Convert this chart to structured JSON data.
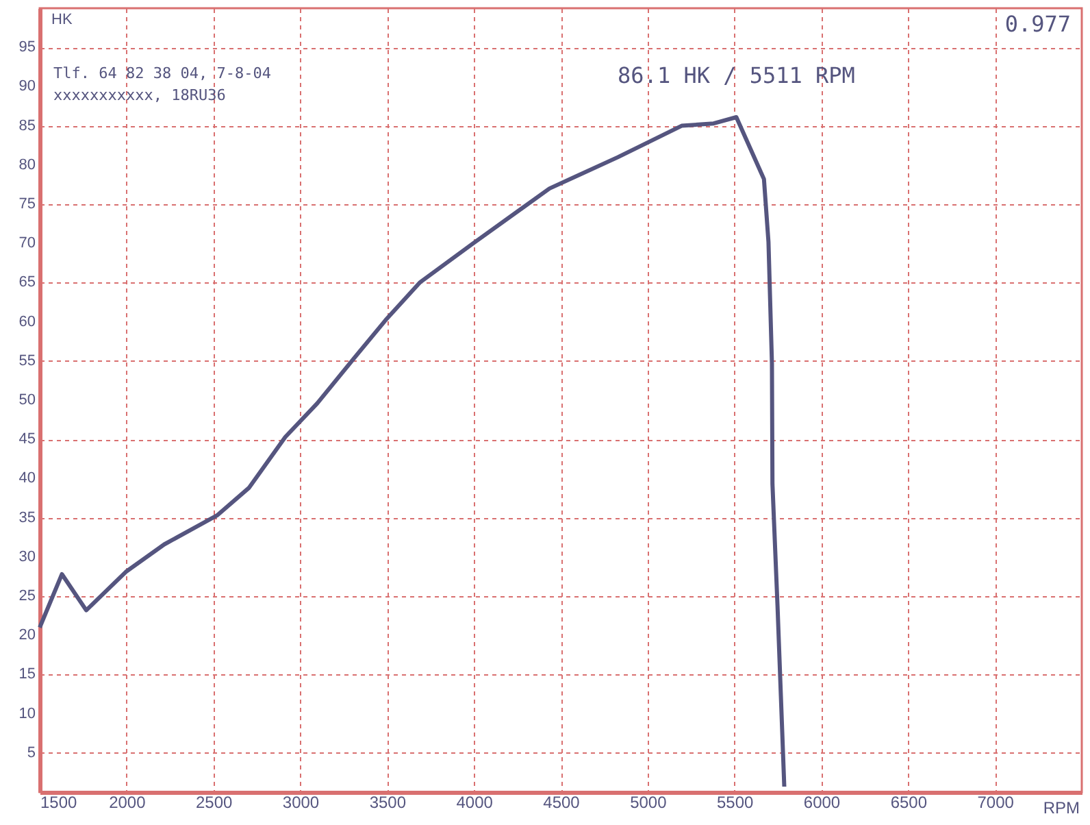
{
  "chart_data": {
    "type": "line",
    "xlabel": "RPM",
    "ylabel": "HK",
    "x": [
      1500,
      1628,
      1768,
      1996,
      2217,
      2521,
      2704,
      2914,
      3098,
      3308,
      3491,
      3688,
      3989,
      4435,
      4829,
      5196,
      5380,
      5511,
      5670,
      5696,
      5716,
      5719,
      5748,
      5774,
      5787
    ],
    "series": [
      {
        "color": "#55557f",
        "values": [
          21.0,
          27.8,
          23.2,
          28.1,
          31.6,
          35.3,
          38.8,
          45.3,
          49.6,
          55.3,
          60.2,
          65.0,
          69.9,
          77.0,
          81.0,
          85.0,
          85.3,
          86.1,
          78.2,
          70.2,
          54.7,
          39.3,
          23.8,
          8.4,
          0.7
        ]
      }
    ],
    "xlim": [
      1500,
      7500
    ],
    "xticks": [
      1500,
      2000,
      2500,
      3000,
      3500,
      4000,
      4500,
      5000,
      5500,
      6000,
      6500,
      7000
    ],
    "ylim": [
      0,
      100
    ],
    "yticks": [
      5,
      10,
      15,
      20,
      25,
      30,
      35,
      40,
      45,
      50,
      55,
      60,
      65,
      70,
      75,
      80,
      85,
      90,
      95
    ],
    "grid": true,
    "marker": "none",
    "line_style": "solid",
    "annotations": [
      "Tlf. 64 82 38 04, 7-8-04",
      "xxxxxxxxxxx, 18RU36",
      {
        "text": "86.1 HK / 5511 RPM",
        "x": 5511,
        "y": 86.1
      },
      "0.977"
    ]
  }
}
